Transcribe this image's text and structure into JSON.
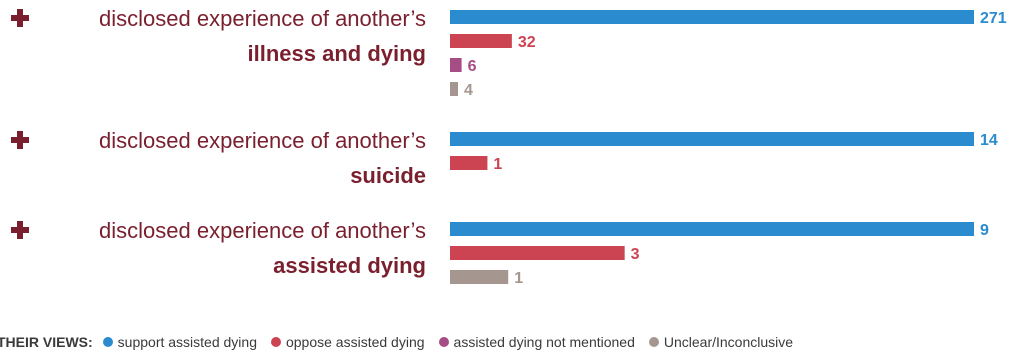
{
  "chart_data": {
    "type": "bar",
    "orientation": "horizontal",
    "title": "",
    "xlabel": "",
    "ylabel": "",
    "grid": false,
    "legend_position": "bottom",
    "categories": [
      {
        "prefix": "disclosed experience of another’s",
        "emphasis": "illness and dying"
      },
      {
        "prefix": "disclosed experience of another’s",
        "emphasis": "suicide"
      },
      {
        "prefix": "disclosed experience of another’s",
        "emphasis": "assisted dying"
      }
    ],
    "legend_title": "THEIR VIEWS:",
    "series": [
      {
        "name": "support assisted dying",
        "color": "#2a8bcf",
        "values": [
          271,
          14,
          9
        ]
      },
      {
        "name": "oppose assisted dying",
        "color": "#cc4452",
        "values": [
          32,
          1,
          3
        ]
      },
      {
        "name": "assisted dying not mentioned",
        "color": "#a64d86",
        "values": [
          6,
          null,
          null
        ]
      },
      {
        "name": "Unclear/Inconclusive",
        "color": "#a59690",
        "values": [
          4,
          null,
          1
        ]
      }
    ],
    "scales": [
      271,
      14,
      9
    ]
  },
  "colors": {
    "category_text": "#7a1f2e",
    "plus_icon": "#7a1f2e",
    "legend_text": "#3a3a3a"
  }
}
